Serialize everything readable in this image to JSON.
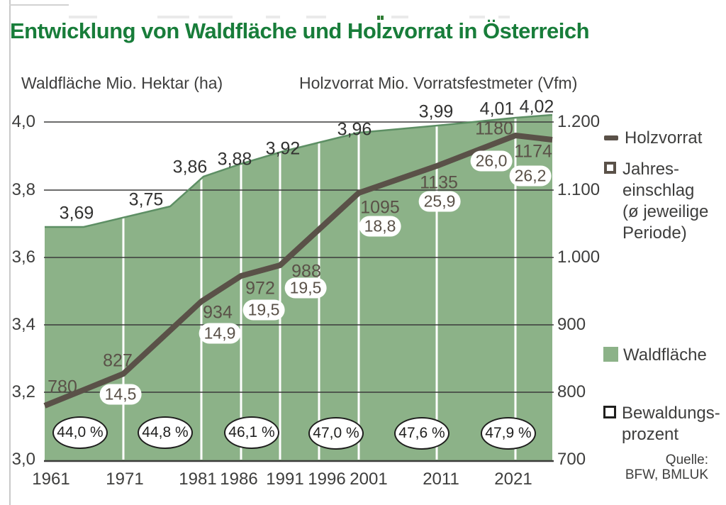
{
  "title": "Entwicklung von Waldfläche und Holzvorrat in Österreich",
  "axes": {
    "left_title": "Waldfläche Mio. Hektar (ha)",
    "right_title": "Holzvorrat Mio. Vorratsfestmeter (Vfm)"
  },
  "chart_data": {
    "type": "area",
    "title": "Entwicklung von Waldfläche und Holzvorrat in Österreich",
    "x_ticks": [
      "1961",
      "1971",
      "1981",
      "1986",
      "1991",
      "1996",
      "2001",
      "2011",
      "2021"
    ],
    "left_axis": {
      "title": "Waldfläche Mio. Hektar (ha)",
      "range": [
        3.0,
        4.0
      ],
      "ticks": [
        "4,0",
        "3,8",
        "3,6",
        "3,4",
        "3,2",
        "3,0"
      ]
    },
    "right_axis": {
      "title": "Holzvorrat Mio. Vorratsfestmeter (Vfm)",
      "range": [
        700,
        1200
      ],
      "ticks": [
        "1.200",
        "1.100",
        "1.000",
        "900",
        "800",
        "700"
      ]
    },
    "grid": true,
    "legend_position": "right",
    "series": [
      {
        "name": "Waldfläche",
        "kind": "area",
        "axis": "left",
        "unit": "Mio. ha",
        "points": [
          {
            "x": "1961",
            "value": 3.69,
            "label": "3,69"
          },
          {
            "x": "1971",
            "value": 3.75,
            "label": "3,75"
          },
          {
            "x": "1981",
            "value": 3.86,
            "label": "3,86"
          },
          {
            "x": "1986",
            "value": 3.88,
            "label": "3,88"
          },
          {
            "x": "1991",
            "value": 3.92,
            "label": "3,92"
          },
          {
            "x": "2001",
            "value": 3.96,
            "label": "3,96"
          },
          {
            "x": "2011",
            "value": 3.99,
            "label": "3,99"
          },
          {
            "x": "2021",
            "value": 4.01,
            "label": "4,01"
          },
          {
            "x": "",
            "value": 4.02,
            "label": "4,02"
          }
        ]
      },
      {
        "name": "Holzvorrat",
        "kind": "line",
        "axis": "right",
        "unit": "Mio. Vfm",
        "points": [
          {
            "x": "1961",
            "value": 780,
            "label": "780"
          },
          {
            "x": "1971",
            "value": 827,
            "label": "827"
          },
          {
            "x": "1981",
            "value": 934,
            "label": "934"
          },
          {
            "x": "1986",
            "value": 972,
            "label": "972"
          },
          {
            "x": "1991",
            "value": 988,
            "label": "988"
          },
          {
            "x": "2001",
            "value": 1095,
            "label": "1095"
          },
          {
            "x": "2011",
            "value": 1135,
            "label": "1135"
          },
          {
            "x": "2021",
            "value": 1180,
            "label": "1180"
          },
          {
            "x": "",
            "value": 1174,
            "label": "1174"
          }
        ]
      },
      {
        "name": "Jahreseinschlag (ø jeweilige Periode)",
        "kind": "value-bubbles",
        "unit": "Mio. Vfm",
        "labels": [
          "14,5",
          "14,9",
          "19,5",
          "19,5",
          "18,8",
          "25,9",
          "26,0",
          "26,2"
        ]
      },
      {
        "name": "Bewaldungsprozent",
        "kind": "percent-ovals",
        "labels": [
          "44,0 %",
          "44,8 %",
          "46,1 %",
          "47,0 %",
          "47,6 %",
          "47,9 %"
        ]
      }
    ]
  },
  "legend": {
    "holzvorrat": "Holzvorrat",
    "jahreseinschlag_lines": [
      "Jahres-",
      "einschlag",
      "(ø jeweilige",
      "Periode)"
    ],
    "waldflaeche": "Waldfläche",
    "bewaldung_lines": [
      "Bewaldungs-",
      "prozent"
    ]
  },
  "source": {
    "label": "Quelle:",
    "value": "BFW, BMLUK"
  },
  "colors": {
    "title_green": "#187d3a",
    "area_green": "#8cb288",
    "area_edge_green": "#5d8f64",
    "line_brown": "#5a5148",
    "grid_dark": "#3b3b3a",
    "white_guides": "#ffffff"
  }
}
